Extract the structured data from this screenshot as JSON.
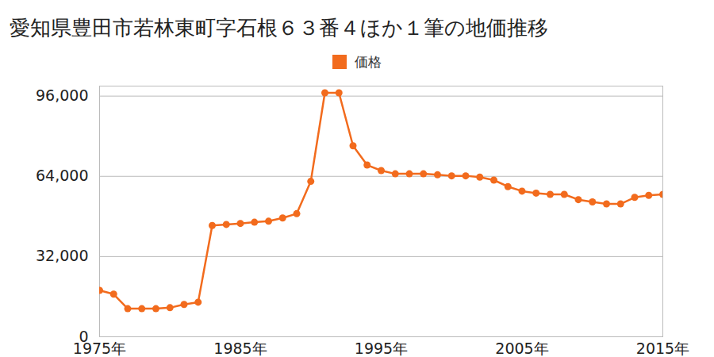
{
  "chart_data": {
    "type": "line",
    "title": "愛知県豊田市若林東町字石根６３番４ほか１筆の地価推移",
    "x": [
      1975,
      1976,
      1977,
      1978,
      1979,
      1980,
      1981,
      1982,
      1983,
      1984,
      1985,
      1986,
      1987,
      1988,
      1989,
      1990,
      1991,
      1992,
      1993,
      1994,
      1995,
      1996,
      1997,
      1998,
      1999,
      2000,
      2001,
      2002,
      2003,
      2004,
      2005,
      2006,
      2007,
      2008,
      2009,
      2010,
      2011,
      2012,
      2013,
      2014,
      2015
    ],
    "series": [
      {
        "name": "価格",
        "color": "#f26b1d",
        "marker": "circle",
        "values": [
          18500,
          17000,
          11200,
          11200,
          11200,
          11600,
          12900,
          13800,
          44400,
          44800,
          45200,
          45700,
          46100,
          47400,
          49100,
          62000,
          97300,
          97300,
          76200,
          68500,
          66300,
          65000,
          65000,
          65000,
          64600,
          64200,
          64200,
          63700,
          62500,
          59900,
          58100,
          57300,
          56800,
          56800,
          54700,
          53800,
          53000,
          53000,
          55600,
          56400,
          56800
        ]
      }
    ],
    "xlim": [
      1975,
      2015
    ],
    "xticks": [
      {
        "value": 1975,
        "label": "1975年"
      },
      {
        "value": 1985,
        "label": "1985年"
      },
      {
        "value": 1995,
        "label": "1995年"
      },
      {
        "value": 2005,
        "label": "2005年"
      },
      {
        "value": 2015,
        "label": "2015年"
      }
    ],
    "ylim": [
      0,
      100000
    ],
    "yticks": [
      0,
      {
        "value": 32000,
        "label": "32,000"
      },
      {
        "value": 64000,
        "label": "64,000"
      },
      {
        "value": 96000,
        "label": "96,000"
      }
    ],
    "grid": true,
    "legend": "top"
  }
}
